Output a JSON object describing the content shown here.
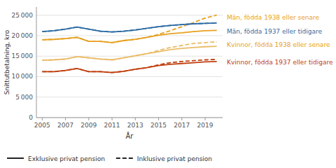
{
  "chart_data": {
    "type": "line",
    "xlabel": "År",
    "ylabel": "Snittutbetalning, kro",
    "x": [
      2005,
      2006,
      2007,
      2008,
      2009,
      2010,
      2011,
      2012,
      2013,
      2014,
      2015,
      2016,
      2017,
      2018,
      2019,
      2020
    ],
    "xlim": [
      2004.5,
      2020.5
    ],
    "xticks": [
      2005,
      2007,
      2009,
      2011,
      2013,
      2015,
      2017,
      2019
    ],
    "ylim": [
      0,
      27000
    ],
    "yticks": [
      0,
      {
        "value": 5000,
        "label": "5 000"
      },
      {
        "value": 10000,
        "label": "10 000"
      },
      {
        "value": 15000,
        "label": "15 000"
      },
      {
        "value": 20000,
        "label": "20 000"
      },
      {
        "value": 25000,
        "label": "25 000"
      }
    ],
    "grid": true,
    "series": [
      {
        "color": "#E8A020",
        "line_style": "solid",
        "values": [
          19000,
          19100,
          19300,
          19600,
          18600,
          18600,
          18300,
          18800,
          19100,
          19600,
          20100,
          20500,
          20700,
          21000,
          21200,
          21300
        ]
      },
      {
        "color": "#E8A020",
        "line_style": "dashed",
        "values": [
          19000,
          19100,
          19300,
          19600,
          18600,
          18600,
          18300,
          18800,
          19100,
          19600,
          20300,
          21200,
          22200,
          23200,
          24300,
          25000
        ]
      },
      {
        "color": "#2E6DA4",
        "line_style": "solid",
        "values": [
          21000,
          21200,
          21600,
          22100,
          21600,
          21100,
          20900,
          21100,
          21400,
          21800,
          22200,
          22500,
          22700,
          22900,
          23000,
          23100
        ]
      },
      {
        "color": "#2E6DA4",
        "line_style": "dashed",
        "values": [
          21000,
          21200,
          21600,
          22100,
          21600,
          21100,
          20900,
          21100,
          21400,
          21800,
          22200,
          22500,
          22700,
          22900,
          23000,
          23100
        ]
      },
      {
        "color": "#EBBC69",
        "line_style": "solid",
        "values": [
          14000,
          14100,
          14300,
          14900,
          14600,
          14300,
          14100,
          14600,
          15100,
          15600,
          16100,
          16600,
          16900,
          17100,
          17300,
          17400
        ]
      },
      {
        "color": "#EBBC69",
        "line_style": "dashed",
        "values": [
          14000,
          14100,
          14300,
          14900,
          14600,
          14300,
          14100,
          14600,
          15100,
          15600,
          16400,
          17100,
          17600,
          18100,
          18300,
          18500
        ]
      },
      {
        "color": "#C04010",
        "line_style": "solid",
        "values": [
          11200,
          11200,
          11500,
          12000,
          11200,
          11200,
          11000,
          11300,
          11800,
          12200,
          12700,
          13000,
          13200,
          13400,
          13600,
          13700
        ]
      },
      {
        "color": "#C04010",
        "line_style": "dashed",
        "values": [
          11200,
          11200,
          11500,
          12000,
          11200,
          11200,
          11000,
          11300,
          11800,
          12200,
          12900,
          13400,
          13700,
          13900,
          14100,
          14200
        ]
      }
    ],
    "annotations": [
      {
        "text": "Män, födda 1938 eller senare",
        "y": 24500,
        "color": "#E8A020"
      },
      {
        "text": "Män, födda 1937 eller tidigare",
        "y": 21000,
        "color": "#2E6DA4"
      },
      {
        "text": "Kvinnor, födda 1938 eller senare",
        "y": 17800,
        "color": "#E8A020"
      },
      {
        "text": "Kvinnor, födda 1937 eller tidigare",
        "y": 13500,
        "color": "#C04010"
      }
    ],
    "style_legend": [
      {
        "name": "Exklusive privat pension",
        "line_style": "solid"
      },
      {
        "name": "Inklusive privat pension",
        "line_style": "dashed"
      }
    ]
  }
}
